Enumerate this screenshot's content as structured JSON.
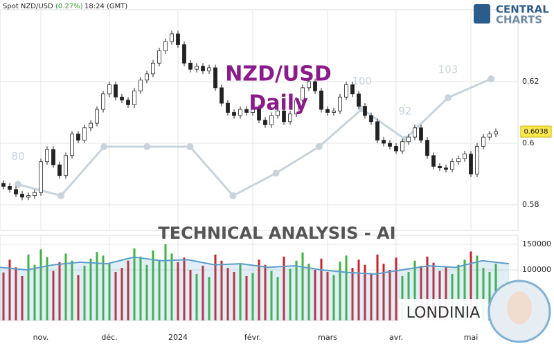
{
  "chart_data": {
    "type": "candlestick",
    "header": {
      "symbol": "Spot NZD/USD",
      "change": "(0.27%)",
      "time": "18:24 (GMT)"
    },
    "logo": {
      "line1": "CENTRAL",
      "line2": "CHARTS"
    },
    "title": "NZD/USD",
    "subtitle": "Daily",
    "banner": "TECHNICAL  ANALYSIS - AI",
    "brand": "LONDINIA",
    "up_color": "#3db43d",
    "down_color": "#c8232c",
    "grid": true,
    "ylim": [
      0.5717,
      0.6465
    ],
    "yticks": [
      0.62,
      0.6,
      0.58
    ],
    "categories": [
      null,
      null,
      null,
      null,
      null,
      null,
      "nov.",
      null,
      null,
      null,
      null,
      null,
      null,
      null,
      null,
      null,
      null,
      "déc.",
      null,
      null,
      null,
      null,
      null,
      null,
      null,
      null,
      null,
      null,
      "2024",
      null,
      null,
      null,
      null,
      null,
      null,
      null,
      null,
      null,
      null,
      null,
      "févr.",
      null,
      null,
      null,
      null,
      null,
      null,
      null,
      null,
      null,
      null,
      null,
      "mars",
      null,
      null,
      null,
      null,
      null,
      null,
      null,
      null,
      null,
      null,
      "avr.",
      null,
      null,
      null,
      null,
      null,
      null,
      null,
      null,
      null,
      null,
      null,
      "mai",
      null,
      null,
      null,
      null
    ],
    "ohlc": [
      [
        0.587,
        0.588,
        0.585,
        0.586
      ],
      [
        0.586,
        0.587,
        0.584,
        0.585
      ],
      [
        0.585,
        0.586,
        0.5825,
        0.5835
      ],
      [
        0.5835,
        0.5845,
        0.5815,
        0.5825
      ],
      [
        0.5825,
        0.584,
        0.5815,
        0.583
      ],
      [
        0.583,
        0.585,
        0.582,
        0.584
      ],
      [
        0.584,
        0.595,
        0.583,
        0.594
      ],
      [
        0.594,
        0.599,
        0.593,
        0.598
      ],
      [
        0.598,
        0.599,
        0.592,
        0.593
      ],
      [
        0.593,
        0.594,
        0.5885,
        0.5895
      ],
      [
        0.5895,
        0.597,
        0.5885,
        0.596
      ],
      [
        0.596,
        0.604,
        0.595,
        0.603
      ],
      [
        0.603,
        0.604,
        0.6,
        0.601
      ],
      [
        0.601,
        0.606,
        0.6,
        0.605
      ],
      [
        0.605,
        0.6075,
        0.604,
        0.6065
      ],
      [
        0.6065,
        0.612,
        0.6055,
        0.611
      ],
      [
        0.611,
        0.617,
        0.61,
        0.616
      ],
      [
        0.616,
        0.62,
        0.615,
        0.619
      ],
      [
        0.619,
        0.62,
        0.614,
        0.615
      ],
      [
        0.615,
        0.616,
        0.613,
        0.614
      ],
      [
        0.614,
        0.615,
        0.6115,
        0.6125
      ],
      [
        0.6125,
        0.618,
        0.6115,
        0.617
      ],
      [
        0.617,
        0.6215,
        0.616,
        0.6205
      ],
      [
        0.6205,
        0.6235,
        0.6195,
        0.6225
      ],
      [
        0.6225,
        0.627,
        0.6215,
        0.626
      ],
      [
        0.626,
        0.631,
        0.625,
        0.63
      ],
      [
        0.63,
        0.634,
        0.629,
        0.633
      ],
      [
        0.633,
        0.6365,
        0.632,
        0.6355
      ],
      [
        0.6355,
        0.6365,
        0.631,
        0.632
      ],
      [
        0.632,
        0.633,
        0.625,
        0.626
      ],
      [
        0.626,
        0.627,
        0.623,
        0.624
      ],
      [
        0.624,
        0.626,
        0.623,
        0.625
      ],
      [
        0.625,
        0.626,
        0.6225,
        0.6235
      ],
      [
        0.6235,
        0.6255,
        0.6225,
        0.6245
      ],
      [
        0.6245,
        0.6255,
        0.617,
        0.618
      ],
      [
        0.618,
        0.619,
        0.612,
        0.613
      ],
      [
        0.613,
        0.614,
        0.609,
        0.61
      ],
      [
        0.61,
        0.611,
        0.608,
        0.609
      ],
      [
        0.609,
        0.612,
        0.608,
        0.611
      ],
      [
        0.611,
        0.612,
        0.609,
        0.61
      ],
      [
        0.61,
        0.6125,
        0.609,
        0.6115
      ],
      [
        0.6115,
        0.6125,
        0.6065,
        0.6075
      ],
      [
        0.6075,
        0.6085,
        0.605,
        0.606
      ],
      [
        0.606,
        0.61,
        0.605,
        0.609
      ],
      [
        0.609,
        0.6115,
        0.608,
        0.6105
      ],
      [
        0.6105,
        0.6115,
        0.606,
        0.607
      ],
      [
        0.607,
        0.6105,
        0.606,
        0.6095
      ],
      [
        0.6095,
        0.615,
        0.6085,
        0.614
      ],
      [
        0.614,
        0.619,
        0.613,
        0.618
      ],
      [
        0.618,
        0.621,
        0.617,
        0.62
      ],
      [
        0.62,
        0.621,
        0.616,
        0.617
      ],
      [
        0.617,
        0.618,
        0.61,
        0.611
      ],
      [
        0.611,
        0.612,
        0.609,
        0.61
      ],
      [
        0.61,
        0.6115,
        0.609,
        0.6105
      ],
      [
        0.6105,
        0.616,
        0.6095,
        0.615
      ],
      [
        0.615,
        0.62,
        0.614,
        0.619
      ],
      [
        0.619,
        0.62,
        0.615,
        0.616
      ],
      [
        0.616,
        0.617,
        0.611,
        0.612
      ],
      [
        0.612,
        0.613,
        0.608,
        0.609
      ],
      [
        0.609,
        0.61,
        0.606,
        0.607
      ],
      [
        0.607,
        0.608,
        0.6,
        0.601
      ],
      [
        0.601,
        0.602,
        0.599,
        0.6
      ],
      [
        0.6,
        0.601,
        0.598,
        0.599
      ],
      [
        0.599,
        0.6,
        0.5965,
        0.5975
      ],
      [
        0.5975,
        0.6015,
        0.5965,
        0.6005
      ],
      [
        0.6005,
        0.603,
        0.5995,
        0.602
      ],
      [
        0.602,
        0.606,
        0.601,
        0.605
      ],
      [
        0.605,
        0.606,
        0.6,
        0.601
      ],
      [
        0.601,
        0.602,
        0.595,
        0.596
      ],
      [
        0.596,
        0.597,
        0.5915,
        0.5925
      ],
      [
        0.5925,
        0.5935,
        0.591,
        0.592
      ],
      [
        0.592,
        0.593,
        0.5905,
        0.5915
      ],
      [
        0.5915,
        0.595,
        0.5905,
        0.594
      ],
      [
        0.594,
        0.596,
        0.593,
        0.595
      ],
      [
        0.595,
        0.5975,
        0.594,
        0.5965
      ],
      [
        0.5965,
        0.5975,
        0.589,
        0.59
      ],
      [
        0.59,
        0.6,
        0.589,
        0.599
      ],
      [
        0.599,
        0.603,
        0.598,
        0.602
      ],
      [
        0.602,
        0.604,
        0.601,
        0.603
      ],
      [
        0.603,
        0.6048,
        0.602,
        0.6038
      ]
    ],
    "ai_line": {
      "color": "#c9d3dc",
      "y3lim": [
        67.8,
        128.9
      ],
      "values": [
        80,
        77,
        90,
        90,
        90,
        77,
        83,
        90,
        100,
        92,
        103,
        108
      ],
      "value_labels": [
        "80",
        null,
        null,
        null,
        null,
        null,
        null,
        null,
        "100",
        "92",
        "103",
        null
      ]
    },
    "volume": {
      "ylim": [
        1400,
        167600
      ],
      "yticks": [
        150000,
        100000
      ],
      "values": [
        95000,
        120000,
        105000,
        88000,
        130000,
        110000,
        140000,
        125000,
        98000,
        115000,
        132000,
        118000,
        90000,
        108000,
        122000,
        135000,
        128000,
        112000,
        96000,
        104000,
        118000,
        142000,
        126000,
        110000,
        138000,
        120000,
        150000,
        132000,
        115000,
        124000,
        100000,
        92000,
        108000,
        86000,
        130000,
        118000,
        104000,
        96000,
        112000,
        88000,
        94000,
        120000,
        110000,
        98000,
        86000,
        126000,
        102000,
        118000,
        134000,
        112000,
        100000,
        122000,
        96000,
        90000,
        116000,
        128000,
        104000,
        120000,
        110000,
        94000,
        130000,
        112000,
        100000,
        124000,
        88000,
        96000,
        118000,
        108000,
        126000,
        114000,
        98000,
        106000,
        92000,
        110000,
        120000,
        136000,
        128000,
        104000,
        96000,
        112000
      ],
      "line_color": "#5b9ec9",
      "line": [
        105000,
        100000,
        110000,
        115000,
        112000,
        125000,
        118000,
        120000,
        110000,
        112000,
        105000,
        108000,
        100000,
        95000,
        92000,
        100000,
        108000,
        105000,
        118000,
        112000
      ]
    }
  }
}
